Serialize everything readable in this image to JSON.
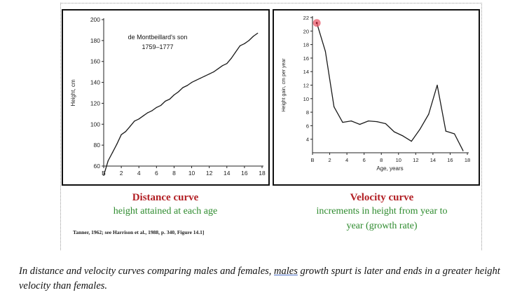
{
  "chart_data": [
    {
      "type": "line",
      "title": "",
      "annotation": [
        "de Montbeillard's son",
        "1759–1777"
      ],
      "xlabel": "",
      "ylabel": "Height, cm",
      "xlim": [
        0,
        18
      ],
      "ylim": [
        60,
        200
      ],
      "xticks": [
        "B",
        "2",
        "4",
        "6",
        "8",
        "10",
        "12",
        "14",
        "16",
        "18"
      ],
      "yticks": [
        "60",
        "80",
        "100",
        "120",
        "140",
        "160",
        "180",
        "200"
      ],
      "grid": false,
      "x": [
        0,
        0.5,
        1,
        1.5,
        2,
        2.5,
        3,
        3.5,
        4,
        4.5,
        5,
        5.5,
        6,
        6.5,
        7,
        7.5,
        8,
        8.5,
        9,
        9.5,
        10,
        10.5,
        11,
        11.5,
        12,
        12.5,
        13,
        13.5,
        14,
        14.5,
        15,
        15.5,
        16,
        16.5,
        17,
        17.5
      ],
      "y": [
        51,
        65,
        73,
        81,
        90,
        93,
        98,
        103,
        105,
        108,
        111,
        113,
        116,
        118,
        122,
        124,
        128,
        131,
        135,
        137,
        140,
        142,
        144,
        146,
        148,
        150,
        153,
        156,
        158,
        163,
        169,
        175,
        177,
        180,
        184,
        187
      ]
    },
    {
      "type": "line",
      "title": "",
      "xlabel": "Age, years",
      "ylabel": "Height gain, cm per year",
      "xlim": [
        0,
        18
      ],
      "ylim": [
        2,
        22
      ],
      "xticks": [
        "B",
        "2",
        "4",
        "6",
        "8",
        "10",
        "12",
        "14",
        "16",
        "18"
      ],
      "yticks": [
        "4",
        "6",
        "8",
        "10",
        "12",
        "14",
        "16",
        "18",
        "20",
        "22"
      ],
      "grid": false,
      "x": [
        0.5,
        1.5,
        2.5,
        3.5,
        4.5,
        5.5,
        6.5,
        7.5,
        8.5,
        9.5,
        10.5,
        11.5,
        12.5,
        13.5,
        14.5,
        15.5,
        16.5,
        17.5
      ],
      "y": [
        21.2,
        17,
        8.8,
        6.5,
        6.7,
        6.2,
        6.7,
        6.6,
        6.3,
        5.1,
        4.5,
        3.7,
        5.5,
        7.7,
        12,
        5.2,
        4.8,
        2.3
      ]
    }
  ],
  "captions": {
    "left_title": "Distance curve",
    "left_subtitle": "height attained at each age",
    "right_title": "Velocity curve",
    "right_subtitle_line1": "increments in height from year to",
    "right_subtitle_line2": "year (growth rate)",
    "citation": "Tanner, 1962; see Harrison et al., 1988, p. 340, Figure 14.1]"
  },
  "bottom_text": {
    "before": "In distance and velocity curves comparing males and females, ",
    "underlined": "males",
    "after": " growth spurt is later and ends in a greater height velocity than females."
  },
  "colors": {
    "caption_title": "#b21f24",
    "caption_subtitle": "#2e8b2e",
    "pointer_marker": "#e85a6a"
  }
}
